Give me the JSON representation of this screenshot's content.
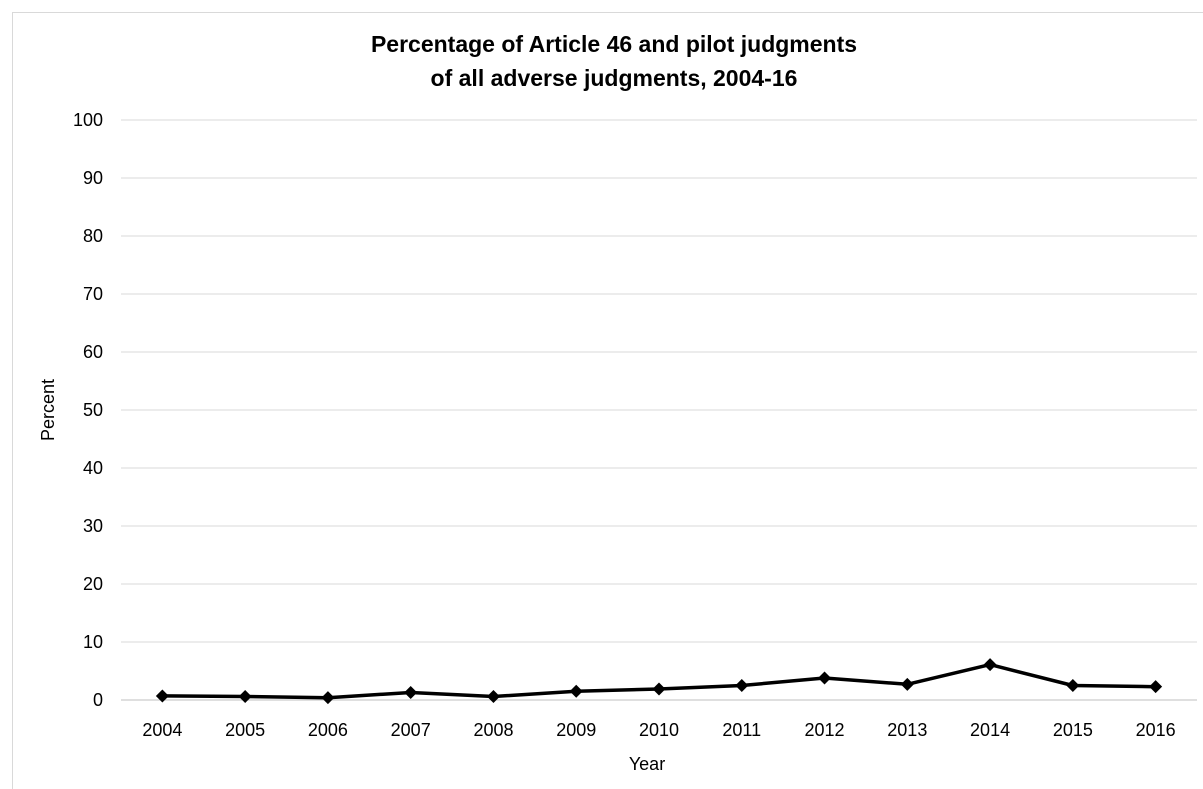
{
  "chart_data": {
    "type": "line",
    "title_line1": "Percentage of Article 46 and pilot judgments",
    "title_line2": "of all adverse judgments, 2004-16",
    "xlabel": "Year",
    "ylabel": "Percent",
    "ylim": [
      0,
      100
    ],
    "yticks": [
      "0",
      "10",
      "20",
      "30",
      "40",
      "50",
      "60",
      "70",
      "80",
      "90",
      "100"
    ],
    "grid": "horizontal",
    "legend": "none",
    "line_color": "#000000",
    "grid_color": "#d9d9d9",
    "marker": "diamond",
    "categories": [
      "2004",
      "2005",
      "2006",
      "2007",
      "2008",
      "2009",
      "2010",
      "2011",
      "2012",
      "2013",
      "2014",
      "2015",
      "2016"
    ],
    "values": [
      0.7,
      0.6,
      0.4,
      1.3,
      0.6,
      1.5,
      1.9,
      2.5,
      3.8,
      2.7,
      6.1,
      2.5,
      2.3
    ]
  }
}
